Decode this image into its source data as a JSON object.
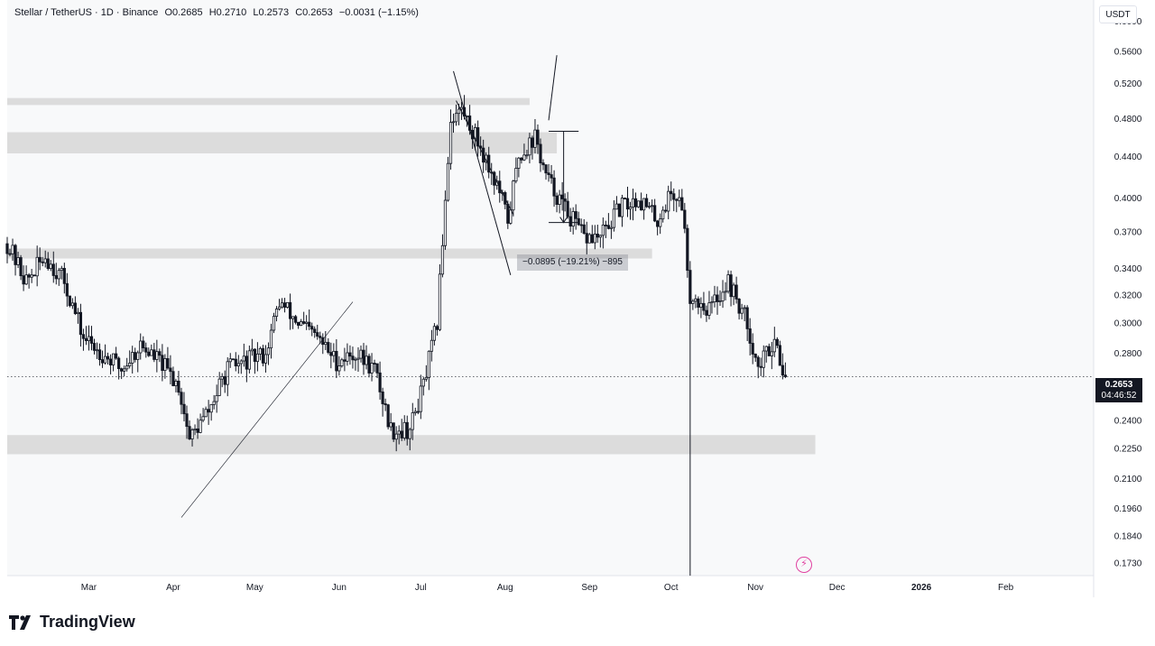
{
  "header": {
    "symbol": "Stellar / TetherUS · 1D · Binance",
    "open": "O0.2685",
    "high": "H0.2710",
    "low": "L0.2573",
    "close": "C0.2653",
    "change": "−0.0031 (−1.15%)"
  },
  "currency": "USDT",
  "current_price": "0.2653",
  "countdown": "04:46:52",
  "measure_text": "−0.0895 (−19.21%) −895",
  "brand": "TradingView",
  "colors": {
    "candle": "#131722",
    "zone": "#dcdcdc",
    "plot_bg": "#f8f9fa",
    "axis_text": "#131722",
    "price_tag": "#131722",
    "accent": "#e040a0"
  },
  "chart_data": {
    "type": "candlestick",
    "x_axis": {
      "tick_labels": [
        "Mar",
        "Apr",
        "May",
        "Jun",
        "Jul",
        "Aug",
        "Sep",
        "Oct",
        "Nov",
        "Dec",
        "2026",
        "Feb"
      ],
      "range": [
        "2025-02-01",
        "2026-02-28"
      ]
    },
    "y_axis": {
      "scale": "log",
      "tick_labels": [
        "0.6000",
        "0.5600",
        "0.5200",
        "0.4800",
        "0.4400",
        "0.4000",
        "0.3700",
        "0.3400",
        "0.3200",
        "0.3000",
        "0.2800",
        "0.2400",
        "0.2250",
        "0.2100",
        "0.1960",
        "0.1840",
        "0.1730"
      ],
      "tick_values": [
        0.6,
        0.56,
        0.52,
        0.48,
        0.44,
        0.4,
        0.37,
        0.34,
        0.32,
        0.3,
        0.28,
        0.24,
        0.225,
        0.21,
        0.196,
        0.184,
        0.173
      ],
      "range": [
        0.168,
        0.63
      ]
    },
    "price_path": [
      [
        "2025-02-01",
        0.36
      ],
      [
        "2025-02-08",
        0.33
      ],
      [
        "2025-02-15",
        0.35
      ],
      [
        "2025-02-22",
        0.33
      ],
      [
        "2025-03-01",
        0.29
      ],
      [
        "2025-03-08",
        0.28
      ],
      [
        "2025-03-15",
        0.27
      ],
      [
        "2025-03-22",
        0.285
      ],
      [
        "2025-03-29",
        0.275
      ],
      [
        "2025-04-05",
        0.26
      ],
      [
        "2025-04-09",
        0.23
      ],
      [
        "2025-04-16",
        0.245
      ],
      [
        "2025-04-23",
        0.27
      ],
      [
        "2025-04-30",
        0.275
      ],
      [
        "2025-05-07",
        0.28
      ],
      [
        "2025-05-12",
        0.315
      ],
      [
        "2025-05-19",
        0.3
      ],
      [
        "2025-05-26",
        0.29
      ],
      [
        "2025-06-02",
        0.275
      ],
      [
        "2025-06-09",
        0.28
      ],
      [
        "2025-06-16",
        0.27
      ],
      [
        "2025-06-22",
        0.235
      ],
      [
        "2025-06-29",
        0.235
      ],
      [
        "2025-07-04",
        0.26
      ],
      [
        "2025-07-09",
        0.3
      ],
      [
        "2025-07-12",
        0.4
      ],
      [
        "2025-07-14",
        0.48
      ],
      [
        "2025-07-18",
        0.49
      ],
      [
        "2025-07-25",
        0.45
      ],
      [
        "2025-08-01",
        0.405
      ],
      [
        "2025-08-04",
        0.38
      ],
      [
        "2025-08-08",
        0.44
      ],
      [
        "2025-08-14",
        0.46
      ],
      [
        "2025-08-18",
        0.42
      ],
      [
        "2025-08-25",
        0.39
      ],
      [
        "2025-09-01",
        0.365
      ],
      [
        "2025-09-07",
        0.365
      ],
      [
        "2025-09-14",
        0.39
      ],
      [
        "2025-09-21",
        0.4
      ],
      [
        "2025-09-28",
        0.38
      ],
      [
        "2025-10-03",
        0.405
      ],
      [
        "2025-10-07",
        0.395
      ],
      [
        "2025-10-10",
        0.32
      ],
      [
        "2025-10-17",
        0.31
      ],
      [
        "2025-10-24",
        0.33
      ],
      [
        "2025-10-31",
        0.3
      ],
      [
        "2025-11-04",
        0.27
      ],
      [
        "2025-11-10",
        0.29
      ],
      [
        "2025-11-14",
        0.2653
      ]
    ],
    "zones": [
      {
        "from": "2025-02-01",
        "to": "2025-08-12",
        "low": 0.495,
        "high": 0.503
      },
      {
        "from": "2025-02-01",
        "to": "2025-08-22",
        "low": 0.443,
        "high": 0.465
      },
      {
        "from": "2025-02-01",
        "to": "2025-09-26",
        "low": 0.348,
        "high": 0.356
      },
      {
        "from": "2025-02-01",
        "to": "2025-11-25",
        "low": 0.222,
        "high": 0.232
      }
    ],
    "current_price": 0.2653
  }
}
